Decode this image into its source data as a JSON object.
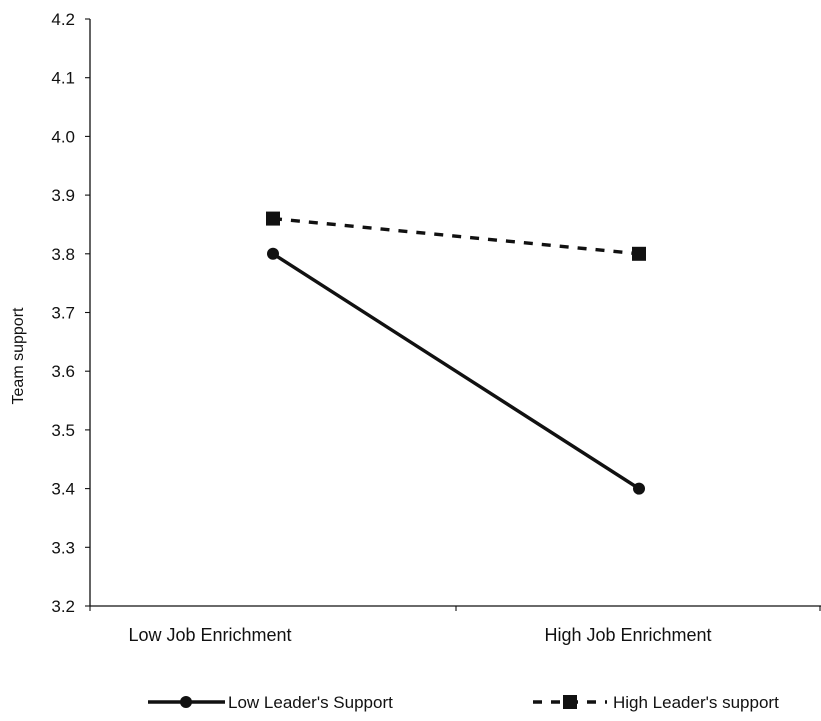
{
  "chart_data": {
    "type": "line",
    "title": "",
    "xlabel": "",
    "ylabel": "Team support",
    "categories": [
      "Low Job Enrichment",
      "High Job Enrichment"
    ],
    "ylim": [
      3.2,
      4.2
    ],
    "yticks": [
      "3.2",
      "3.3",
      "3.4",
      "3.5",
      "3.6",
      "3.7",
      "3.8",
      "3.9",
      "4.0",
      "4.1",
      "4.2"
    ],
    "grid": false,
    "legend_position": "bottom",
    "series": [
      {
        "name": "Low Leader's Support",
        "values": [
          3.8,
          3.4
        ],
        "line_style": "solid",
        "marker": "circle",
        "color": "#111111"
      },
      {
        "name": "High Leader's support",
        "values": [
          3.86,
          3.8
        ],
        "line_style": "dashed",
        "marker": "square",
        "color": "#111111"
      }
    ]
  }
}
